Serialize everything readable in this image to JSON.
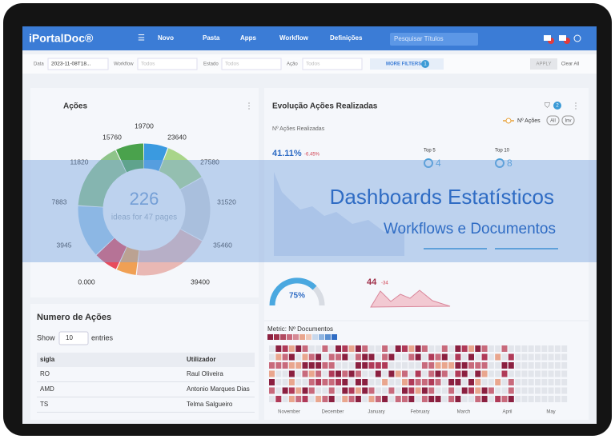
{
  "nav": {
    "brand": "iPortalDoc®",
    "menu": [
      "Novo",
      "Pasta",
      "Apps",
      "Workflow",
      "Definições"
    ],
    "search": "Pesquisar Títulos"
  },
  "filters": {
    "date_label": "Data",
    "date_value": "2023-11-08T18...",
    "workflow_label": "Workflow",
    "workflow_value": "Todos",
    "estado_label": "Estado",
    "estado_value": "Todos",
    "acao_label": "Ação",
    "acao_value": "Todos",
    "more_filters": "MORE FILTERS",
    "more_filters_count": "1",
    "apply": "APPLY",
    "clear": "Clear All"
  },
  "acoes_card": {
    "title": "Ações",
    "scale_labels": [
      "19700",
      "23640",
      "27580",
      "31520",
      "35460",
      "39400",
      "0.000",
      "3945",
      "7883",
      "11820",
      "15760"
    ],
    "center_value": "226",
    "center_caption": "ideas for 47 pages"
  },
  "evolucao_card": {
    "title": "Evolução Ações Realizadas",
    "filter_count": "2",
    "subtitle": "Nº Ações Realizadas",
    "legend": "Nº Ações",
    "toggles": [
      "All",
      "Inv"
    ],
    "percent": "41.11%",
    "change": "-6.45%",
    "top5_label": "Top 5",
    "top5_value": "4",
    "top10_label": "Top 10",
    "top10_value": "8",
    "gauge_value": "75%",
    "count_value": "44",
    "count_change": "-34"
  },
  "banner": {
    "title": "Dashboards  Estatísticos",
    "subtitle": "Workflows e Documentos"
  },
  "table": {
    "title": "Numero de Ações",
    "show": "Show",
    "page_size": "10",
    "entries": "entries",
    "columns": [
      "sigla",
      "Utilizador"
    ],
    "rows": [
      [
        "RO",
        "Raul Oliveira"
      ],
      [
        "AMD",
        "Antonio Marques Dias"
      ],
      [
        "TS",
        "Telma Salgueiro"
      ]
    ]
  },
  "heatmap": {
    "metric": "Metric: Nº Documentos",
    "months": [
      "November",
      "December",
      "January",
      "February",
      "March",
      "April",
      "May"
    ]
  }
}
